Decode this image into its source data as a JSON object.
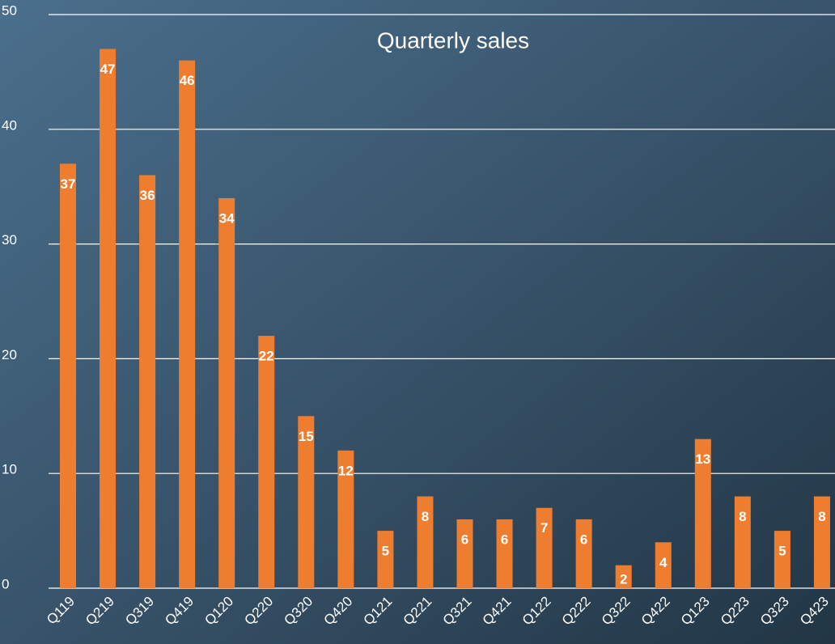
{
  "chart_data": {
    "type": "bar",
    "title": "Quarterly sales",
    "categories": [
      "Q119",
      "Q219",
      "Q319",
      "Q419",
      "Q120",
      "Q220",
      "Q320",
      "Q420",
      "Q121",
      "Q221",
      "Q321",
      "Q421",
      "Q122",
      "Q222",
      "Q322",
      "Q422",
      "Q123",
      "Q223",
      "Q323",
      "Q423"
    ],
    "values": [
      37,
      47,
      36,
      46,
      34,
      22,
      15,
      12,
      5,
      8,
      6,
      6,
      7,
      6,
      2,
      4,
      13,
      8,
      5,
      8
    ],
    "color": "#ee7d30",
    "ylim": [
      0,
      50
    ],
    "yticks": [
      0,
      10,
      20,
      30,
      40,
      50
    ],
    "grid": true
  }
}
